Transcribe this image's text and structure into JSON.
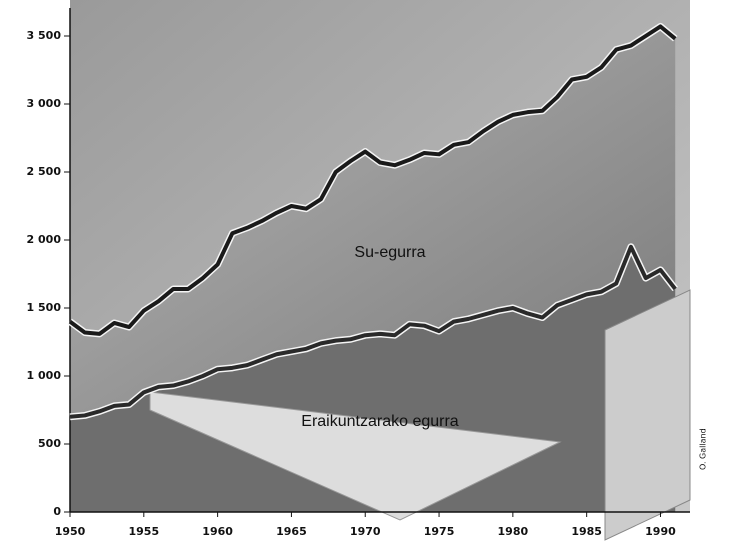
{
  "chart_data": {
    "type": "line",
    "x": [
      1950,
      1951,
      1952,
      1953,
      1954,
      1955,
      1956,
      1957,
      1958,
      1959,
      1960,
      1961,
      1962,
      1963,
      1964,
      1965,
      1966,
      1967,
      1968,
      1969,
      1970,
      1971,
      1972,
      1973,
      1974,
      1975,
      1976,
      1977,
      1978,
      1979,
      1980,
      1981,
      1982,
      1983,
      1984,
      1985,
      1986,
      1987,
      1988,
      1989,
      1990,
      1991
    ],
    "series": [
      {
        "name": "Su-egurra",
        "color": "#1a1a1a",
        "values": [
          1400,
          1320,
          1310,
          1390,
          1360,
          1480,
          1550,
          1640,
          1640,
          1720,
          1820,
          2050,
          2090,
          2140,
          2200,
          2250,
          2230,
          2300,
          2500,
          2580,
          2650,
          2570,
          2550,
          2590,
          2640,
          2630,
          2700,
          2720,
          2800,
          2870,
          2920,
          2940,
          2950,
          3050,
          3180,
          3200,
          3270,
          3400,
          3430,
          3500,
          3570,
          3480
        ]
      },
      {
        "name": "Eraikuntzarako egurra",
        "color": "#2a2a2a",
        "values": [
          700,
          710,
          740,
          780,
          790,
          880,
          920,
          930,
          960,
          1000,
          1050,
          1060,
          1080,
          1120,
          1160,
          1180,
          1200,
          1240,
          1260,
          1270,
          1300,
          1310,
          1300,
          1380,
          1370,
          1330,
          1400,
          1420,
          1450,
          1480,
          1500,
          1460,
          1430,
          1520,
          1560,
          1600,
          1620,
          1680,
          1950,
          1720,
          1780,
          1640
        ]
      }
    ],
    "xlim": [
      1950,
      1992
    ],
    "xticks": [
      1950,
      1955,
      1960,
      1965,
      1970,
      1975,
      1980,
      1985,
      1990
    ],
    "ylim": [
      0,
      3500
    ],
    "yticks": [
      0,
      500,
      {
        "value": 1000,
        "label": "1 000"
      },
      {
        "value": 1500,
        "label": "1 500"
      },
      {
        "value": 2000,
        "label": "2 000"
      },
      {
        "value": 2500,
        "label": "2 500"
      },
      {
        "value": 3000,
        "label": "3 000"
      },
      {
        "value": 3500,
        "label": "3 500"
      }
    ],
    "credit": "O. Galland"
  }
}
